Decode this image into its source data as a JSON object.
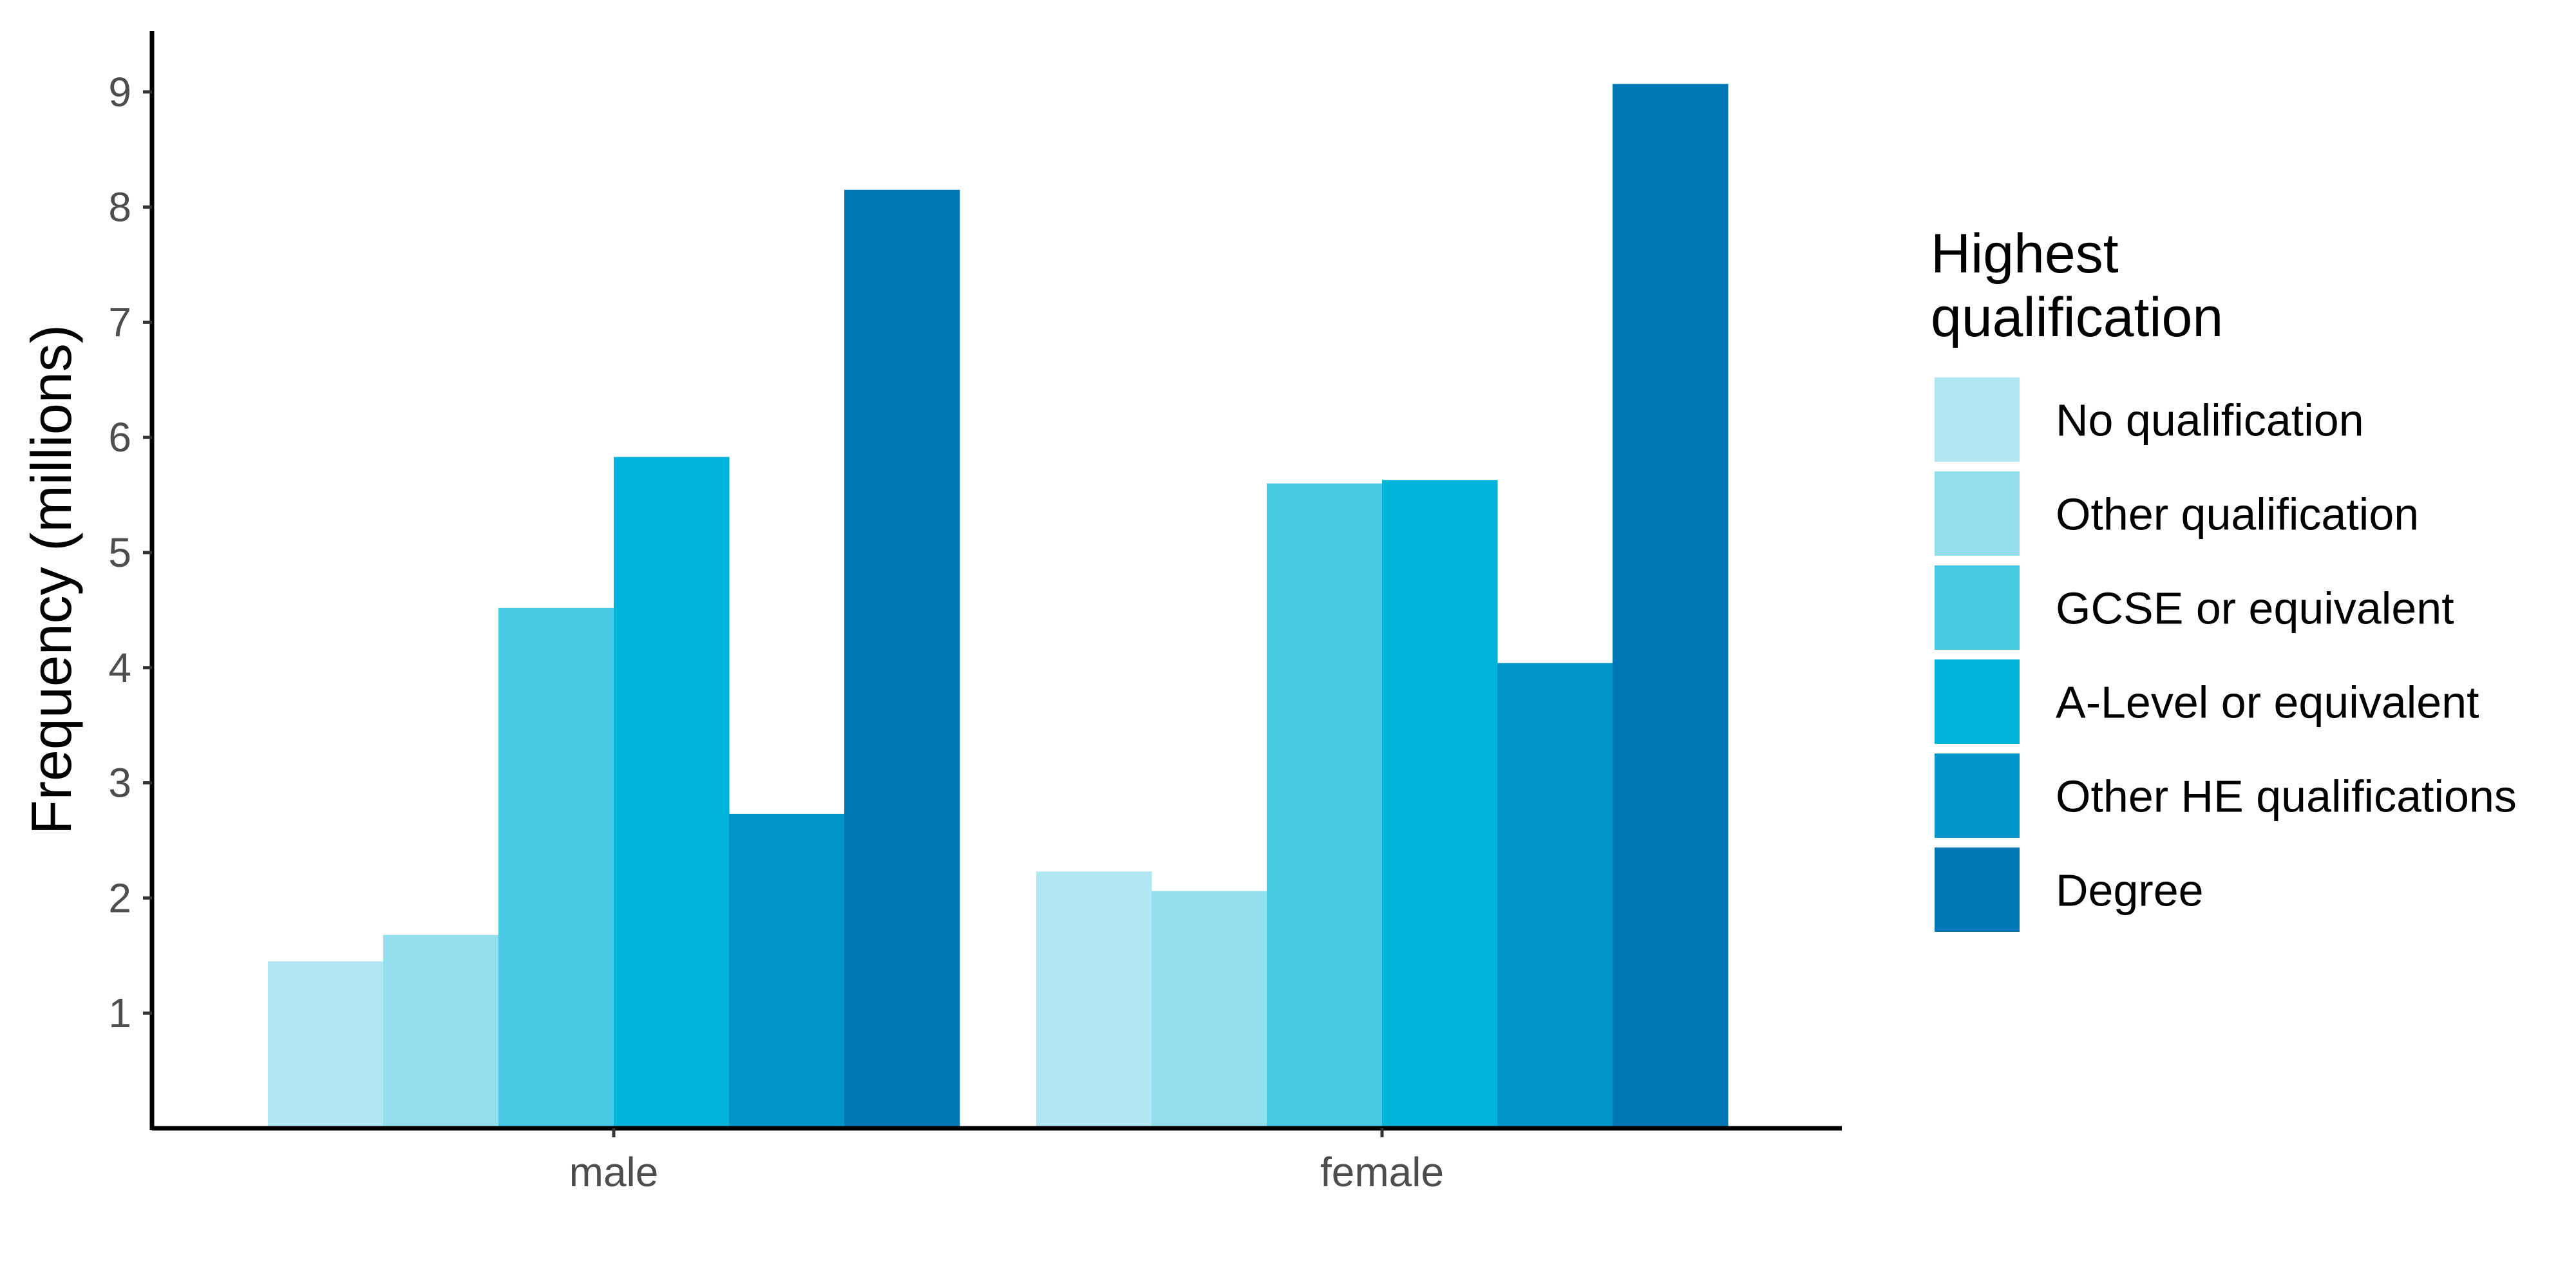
{
  "chart_data": {
    "type": "bar",
    "categories": [
      "male",
      "female"
    ],
    "series": [
      {
        "name": "No qualification",
        "values": [
          1.45,
          2.23
        ],
        "color": "#b0e7f2"
      },
      {
        "name": "Other qualification",
        "values": [
          1.68,
          2.06
        ],
        "color": "#93dfee"
      },
      {
        "name": "GCSE or equivalent",
        "values": [
          4.52,
          5.6
        ],
        "color": "#47c8e3"
      },
      {
        "name": "A-Level or equivalent",
        "values": [
          5.83,
          5.63
        ],
        "color": "#00b3d8"
      },
      {
        "name": "Other HE qualifications",
        "values": [
          2.73,
          4.04
        ],
        "color": "#0096c9"
      },
      {
        "name": "Degree",
        "values": [
          8.15,
          9.07
        ],
        "color": "#0078b7"
      }
    ],
    "title": "",
    "xlabel": "",
    "ylabel": "Frequency (millions)",
    "yticks": [
      1,
      2,
      3,
      4,
      5,
      6,
      7,
      8,
      9
    ],
    "ylim": [
      0.0,
      9.53
    ],
    "grid": false,
    "legend": {
      "title_lines": [
        "Highest",
        "qualification"
      ],
      "position": "right"
    }
  }
}
